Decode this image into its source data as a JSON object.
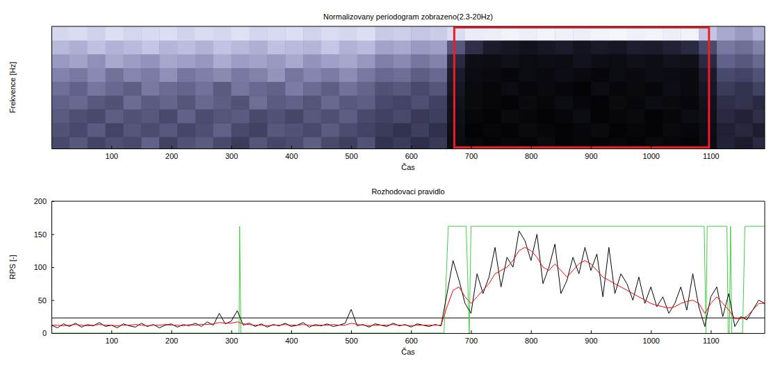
{
  "chart_data": [
    {
      "type": "heatmap",
      "title": "Normalizovany periodogram zobrazeno(2.3-20Hz)",
      "x_label": "Čas",
      "y_label": "Frekvence [Hz]",
      "xlim": [
        0,
        1190
      ],
      "xticks": [
        100,
        200,
        300,
        400,
        500,
        600,
        700,
        800,
        900,
        1000,
        1100
      ],
      "ylim": [
        2.3,
        20
      ],
      "tick_labels": "x",
      "zlim": [
        0,
        1
      ],
      "highlight": {
        "x": [
          672,
          1097
        ],
        "color": "#ee1c24"
      },
      "x_edges": [
        0,
        30,
        60,
        90,
        120,
        150,
        180,
        210,
        240,
        270,
        300,
        330,
        360,
        390,
        420,
        450,
        480,
        510,
        540,
        570,
        600,
        630,
        660,
        690,
        720,
        750,
        780,
        810,
        840,
        870,
        900,
        930,
        960,
        990,
        1020,
        1050,
        1080,
        1110,
        1140,
        1170,
        1190
      ],
      "y_edges": [
        2.3,
        4,
        6,
        8,
        10,
        12,
        14,
        16,
        18,
        20
      ],
      "cells": [
        [
          0.3,
          0.35,
          0.28,
          0.32,
          0.3,
          0.38,
          0.27,
          0.33,
          0.36,
          0.3,
          0.25,
          0.34,
          0.29,
          0.31,
          0.37,
          0.3,
          0.26,
          0.33,
          0.22,
          0.25,
          0.2,
          0.24,
          0.05,
          0.03,
          0.02,
          0.03,
          0.02,
          0.04,
          0.02,
          0.03,
          0.02,
          0.03,
          0.02,
          0.04,
          0.03,
          0.02,
          0.05,
          0.15,
          0.12,
          0.18
        ],
        [
          0.33,
          0.3,
          0.36,
          0.28,
          0.34,
          0.31,
          0.35,
          0.29,
          0.32,
          0.38,
          0.3,
          0.27,
          0.35,
          0.33,
          0.3,
          0.36,
          0.31,
          0.28,
          0.25,
          0.22,
          0.26,
          0.21,
          0.06,
          0.02,
          0.03,
          0.02,
          0.04,
          0.03,
          0.02,
          0.03,
          0.04,
          0.02,
          0.03,
          0.02,
          0.04,
          0.03,
          0.06,
          0.14,
          0.17,
          0.13
        ],
        [
          0.36,
          0.32,
          0.3,
          0.37,
          0.33,
          0.35,
          0.3,
          0.38,
          0.31,
          0.34,
          0.36,
          0.3,
          0.33,
          0.29,
          0.35,
          0.32,
          0.37,
          0.3,
          0.27,
          0.3,
          0.24,
          0.26,
          0.07,
          0.03,
          0.02,
          0.04,
          0.03,
          0.02,
          0.03,
          0.05,
          0.02,
          0.03,
          0.04,
          0.02,
          0.03,
          0.05,
          0.07,
          0.18,
          0.15,
          0.2
        ],
        [
          0.38,
          0.4,
          0.35,
          0.33,
          0.41,
          0.36,
          0.39,
          0.34,
          0.4,
          0.37,
          0.33,
          0.42,
          0.36,
          0.38,
          0.34,
          0.4,
          0.35,
          0.37,
          0.3,
          0.28,
          0.32,
          0.27,
          0.08,
          0.04,
          0.03,
          0.02,
          0.04,
          0.03,
          0.05,
          0.03,
          0.02,
          0.04,
          0.03,
          0.05,
          0.04,
          0.03,
          0.08,
          0.2,
          0.22,
          0.18
        ],
        [
          0.42,
          0.38,
          0.44,
          0.4,
          0.37,
          0.45,
          0.41,
          0.39,
          0.43,
          0.36,
          0.44,
          0.4,
          0.38,
          0.46,
          0.41,
          0.37,
          0.43,
          0.39,
          0.33,
          0.35,
          0.3,
          0.34,
          0.1,
          0.04,
          0.03,
          0.05,
          0.03,
          0.04,
          0.03,
          0.02,
          0.05,
          0.03,
          0.04,
          0.03,
          0.06,
          0.04,
          0.1,
          0.25,
          0.22,
          0.27
        ],
        [
          0.48,
          0.45,
          0.5,
          0.43,
          0.49,
          0.46,
          0.52,
          0.44,
          0.47,
          0.5,
          0.45,
          0.48,
          0.53,
          0.44,
          0.49,
          0.46,
          0.51,
          0.45,
          0.4,
          0.42,
          0.37,
          0.4,
          0.12,
          0.05,
          0.04,
          0.03,
          0.05,
          0.04,
          0.06,
          0.04,
          0.03,
          0.05,
          0.04,
          0.06,
          0.05,
          0.04,
          0.12,
          0.3,
          0.28,
          0.33
        ],
        [
          0.55,
          0.58,
          0.52,
          0.6,
          0.56,
          0.53,
          0.59,
          0.57,
          0.54,
          0.61,
          0.56,
          0.58,
          0.55,
          0.6,
          0.53,
          0.57,
          0.59,
          0.54,
          0.47,
          0.5,
          0.44,
          0.48,
          0.18,
          0.06,
          0.05,
          0.07,
          0.05,
          0.06,
          0.05,
          0.08,
          0.06,
          0.05,
          0.07,
          0.06,
          0.08,
          0.07,
          0.18,
          0.38,
          0.35,
          0.4
        ],
        [
          0.65,
          0.62,
          0.68,
          0.63,
          0.66,
          0.7,
          0.64,
          0.67,
          0.63,
          0.69,
          0.65,
          0.62,
          0.68,
          0.66,
          0.64,
          0.7,
          0.63,
          0.66,
          0.58,
          0.6,
          0.55,
          0.57,
          0.35,
          0.2,
          0.12,
          0.1,
          0.08,
          0.1,
          0.12,
          0.09,
          0.11,
          0.1,
          0.13,
          0.12,
          0.15,
          0.18,
          0.3,
          0.45,
          0.42,
          0.48
        ],
        [
          0.78,
          0.8,
          0.75,
          0.82,
          0.77,
          0.79,
          0.81,
          0.76,
          0.8,
          0.78,
          0.83,
          0.77,
          0.79,
          0.81,
          0.76,
          0.8,
          0.78,
          0.82,
          0.72,
          0.74,
          0.7,
          0.73,
          0.8,
          0.88,
          0.9,
          0.92,
          0.9,
          0.93,
          0.91,
          0.9,
          0.92,
          0.94,
          0.91,
          0.93,
          0.9,
          0.92,
          0.7,
          0.6,
          0.55,
          0.62
        ]
      ]
    },
    {
      "type": "line",
      "title": "Rozhodovaci pravidlo",
      "x_label": "Čas",
      "y_label": "RPS [-]",
      "xlim": [
        0,
        1190
      ],
      "xticks": [
        100,
        200,
        300,
        400,
        500,
        600,
        700,
        800,
        900,
        1000,
        1100
      ],
      "ylim": [
        0,
        200
      ],
      "yticks": [
        0,
        50,
        100,
        150,
        200
      ],
      "grid": false,
      "x": [
        0,
        10,
        20,
        30,
        40,
        50,
        60,
        70,
        80,
        90,
        100,
        110,
        120,
        130,
        140,
        150,
        160,
        170,
        180,
        190,
        200,
        210,
        220,
        230,
        240,
        250,
        260,
        270,
        280,
        290,
        300,
        310,
        320,
        330,
        340,
        350,
        360,
        370,
        380,
        390,
        400,
        410,
        420,
        430,
        440,
        450,
        460,
        470,
        480,
        490,
        500,
        510,
        520,
        530,
        540,
        550,
        560,
        570,
        580,
        590,
        600,
        610,
        620,
        630,
        640,
        650,
        660,
        670,
        680,
        690,
        700,
        710,
        720,
        730,
        740,
        750,
        760,
        770,
        780,
        790,
        800,
        810,
        820,
        830,
        840,
        850,
        860,
        870,
        880,
        890,
        900,
        910,
        920,
        930,
        940,
        950,
        960,
        970,
        980,
        990,
        1000,
        1010,
        1020,
        1030,
        1040,
        1050,
        1060,
        1070,
        1080,
        1090,
        1100,
        1110,
        1120,
        1130,
        1140,
        1150,
        1160,
        1170,
        1180,
        1190
      ],
      "series": [
        {
          "color": "#000000",
          "values": [
            12,
            8,
            14,
            10,
            15,
            9,
            13,
            11,
            16,
            10,
            12,
            8,
            14,
            11,
            9,
            15,
            10,
            13,
            8,
            12,
            14,
            9,
            13,
            11,
            15,
            10,
            17,
            12,
            30,
            14,
            18,
            34,
            12,
            15,
            10,
            14,
            9,
            13,
            11,
            15,
            10,
            12,
            16,
            9,
            13,
            11,
            14,
            10,
            12,
            15,
            36,
            11,
            13,
            9,
            14,
            12,
            10,
            15,
            11,
            13,
            9,
            14,
            12,
            10,
            13,
            11,
            60,
            110,
            80,
            45,
            30,
            90,
            60,
            85,
            130,
            70,
            115,
            100,
            155,
            140,
            110,
            150,
            75,
            100,
            135,
            60,
            80,
            115,
            90,
            130,
            95,
            120,
            55,
            130,
            60,
            90,
            75,
            50,
            85,
            45,
            70,
            40,
            55,
            30,
            45,
            70,
            35,
            90,
            40,
            10,
            55,
            70,
            25,
            60,
            10,
            25,
            20,
            35,
            50,
            45
          ]
        },
        {
          "color": "#ff0000",
          "values": [
            12,
            12,
            11,
            12,
            13,
            12,
            11,
            12,
            13,
            12,
            12,
            11,
            12,
            12,
            13,
            12,
            11,
            12,
            12,
            13,
            12,
            12,
            11,
            13,
            12,
            13,
            13,
            14,
            16,
            15,
            15,
            17,
            14,
            13,
            12,
            12,
            11,
            12,
            12,
            13,
            12,
            12,
            13,
            12,
            11,
            12,
            12,
            13,
            12,
            12,
            15,
            13,
            12,
            11,
            12,
            12,
            12,
            13,
            12,
            12,
            11,
            12,
            12,
            12,
            12,
            12,
            40,
            65,
            70,
            55,
            45,
            55,
            65,
            75,
            90,
            95,
            100,
            110,
            125,
            130,
            125,
            115,
            100,
            95,
            105,
            95,
            85,
            95,
            105,
            110,
            105,
            95,
            85,
            80,
            75,
            70,
            65,
            60,
            55,
            50,
            45,
            42,
            40,
            38,
            40,
            45,
            48,
            50,
            45,
            30,
            45,
            55,
            45,
            35,
            22,
            22,
            25,
            35,
            45,
            45
          ]
        },
        {
          "color": "#44cc44",
          "x": [
            0,
            313,
            314,
            315,
            316,
            655,
            662,
            692,
            697,
            700,
            1089,
            1092,
            1094,
            1127,
            1129,
            1131,
            1133,
            1135,
            1153,
            1157,
            1190
          ],
          "values": [
            0,
            0,
            162,
            80,
            0,
            0,
            162,
            162,
            0,
            162,
            162,
            0,
            162,
            162,
            0,
            0,
            162,
            0,
            0,
            162,
            162
          ]
        },
        {
          "color": "#000000",
          "x": [
            0,
            1190
          ],
          "values": [
            23,
            23
          ]
        }
      ]
    }
  ]
}
